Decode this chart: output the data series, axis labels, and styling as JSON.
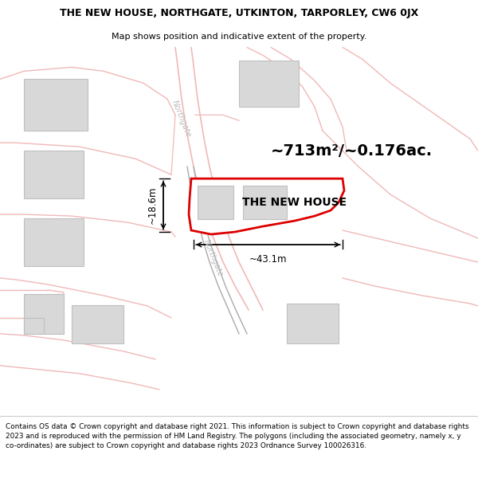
{
  "title": "THE NEW HOUSE, NORTHGATE, UTKINTON, TARPORLEY, CW6 0JX",
  "subtitle": "Map shows position and indicative extent of the property.",
  "property_label": "THE NEW HOUSE",
  "area_label": "~713m²/~0.176ac.",
  "dim_horizontal": "~43.1m",
  "dim_vertical": "~18.6m",
  "road_label1": "Northgate",
  "road_label2": "Northgate",
  "footer": "Contains OS data © Crown copyright and database right 2021. This information is subject to Crown copyright and database rights 2023 and is reproduced with the permission of HM Land Registry. The polygons (including the associated geometry, namely x, y co-ordinates) are subject to Crown copyright and database rights 2023 Ordnance Survey 100026316.",
  "bg_color": "#ffffff",
  "map_bg": "#ffffff",
  "road_color": "#f0b8b8",
  "building_fill": "#d8d8d8",
  "building_edge": "#c0c0c0",
  "plot_outline_color": "#dd0000",
  "road_label_color": "#bbbbbb",
  "dim_color": "#000000",
  "text_color": "#000000",
  "footer_bg": "#f5f5f5"
}
